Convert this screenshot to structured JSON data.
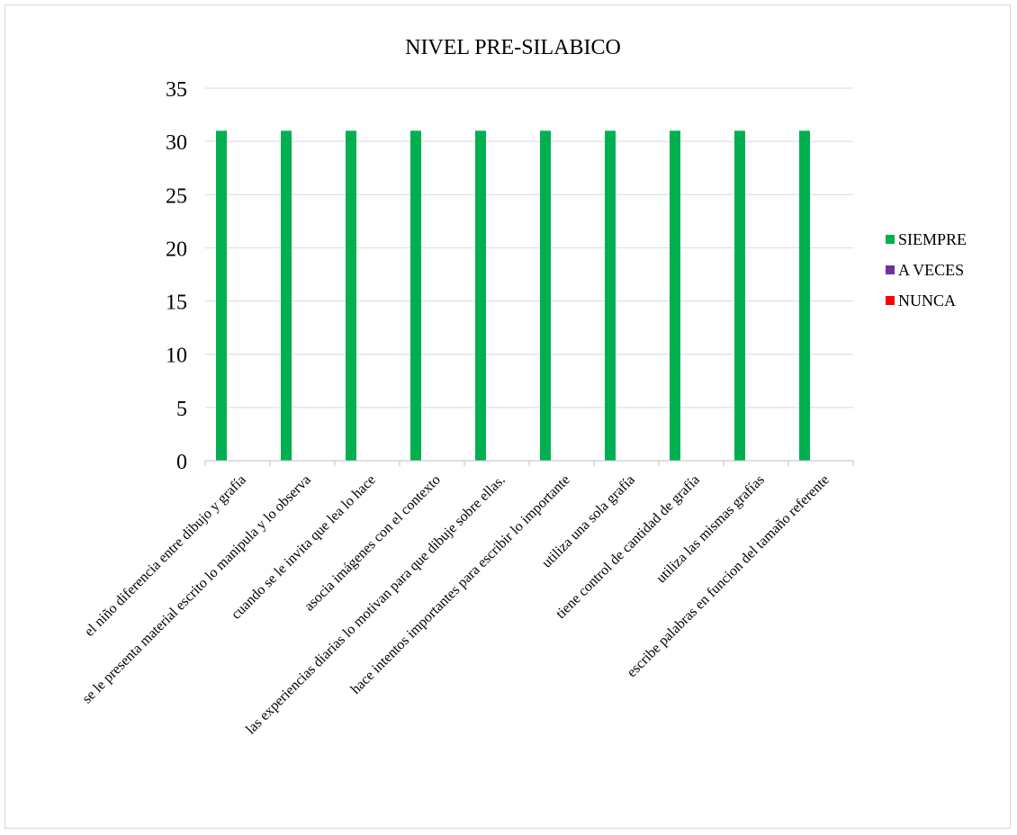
{
  "chart_data": {
    "type": "bar",
    "title": "NIVEL PRE-SILABICO",
    "xlabel": "",
    "ylabel": "",
    "ylim": [
      0,
      35
    ],
    "yticks": [
      0,
      5,
      10,
      15,
      20,
      25,
      30,
      35
    ],
    "grid": true,
    "legend_position": "right",
    "categories": [
      "el niño diferencia entre dibujo y grafía",
      "se le presenta material escrito lo manipula y lo observa",
      "cuando se le invita que lea lo hace",
      "asocia imágenes con el contexto",
      "las experiencias diarias lo motivan para que dibuje sobre ellas.",
      "hace intentos importantes para escribir lo importante",
      "utiliza una sola grafía",
      "tiene control de cantidad de grafía",
      "utiliza las mismas grafías",
      "escribe palabras en funcion del tamaño referente"
    ],
    "series": [
      {
        "name": "SIEMPRE",
        "color": "#00b050",
        "values": [
          31,
          31,
          31,
          31,
          31,
          31,
          31,
          31,
          31,
          31
        ]
      },
      {
        "name": "A VECES",
        "color": "#7030a0",
        "values": [
          0,
          0,
          0,
          0,
          0,
          0,
          0,
          0,
          0,
          0
        ]
      },
      {
        "name": "NUNCA",
        "color": "#ff0000",
        "values": [
          0,
          0,
          0,
          0,
          0,
          0,
          0,
          0,
          0,
          0
        ]
      }
    ]
  }
}
